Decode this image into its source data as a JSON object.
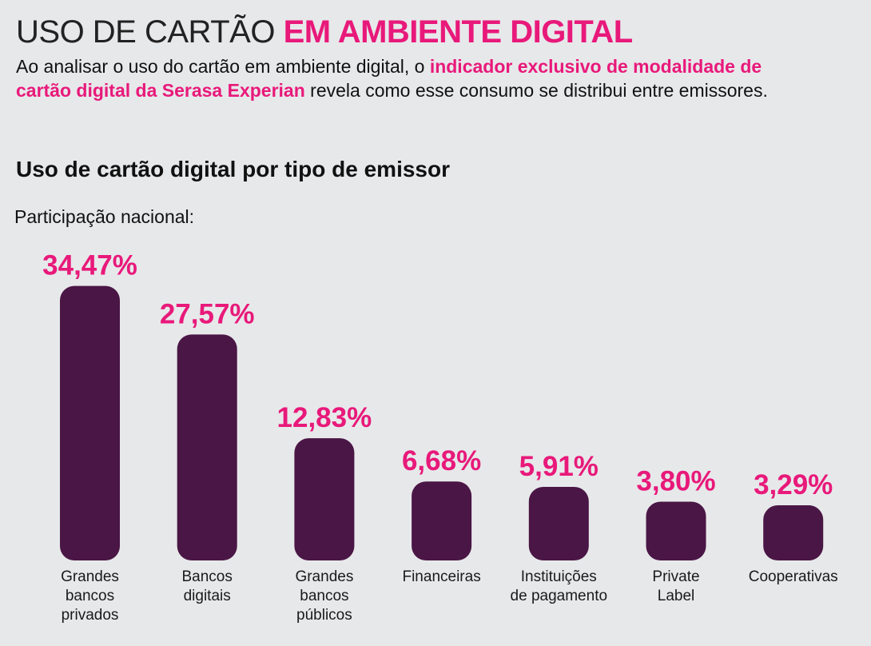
{
  "header": {
    "title_light": "USO DE CARTÃO",
    "title_bold": "EM AMBIENTE DIGITAL",
    "intro_1": "Ao analisar o uso do cartão em ambiente digital, o ",
    "intro_highlight": "indicador exclusivo de modalidade de cartão digital da Serasa Experian",
    "intro_2": " revela como esse consumo se distribui entre emissores."
  },
  "colors": {
    "accent": "#e8197a",
    "bar": "#4a1645",
    "background": "#e7e8ea"
  },
  "chart_data": {
    "type": "bar",
    "title": "Uso de cartão digital por tipo de emissor",
    "subtitle": "Participação nacional:",
    "categories": [
      [
        "Grandes",
        "bancos",
        "privados"
      ],
      [
        "Bancos",
        "digitais"
      ],
      [
        "Grandes",
        "bancos",
        "públicos"
      ],
      [
        "Financeiras"
      ],
      [
        "Instituições",
        "de pagamento"
      ],
      [
        "Private",
        "Label"
      ],
      [
        "Cooperativas"
      ]
    ],
    "values": [
      34.47,
      27.57,
      12.83,
      6.68,
      5.91,
      3.8,
      3.29
    ],
    "value_labels": [
      "34,47%",
      "27,57%",
      "12,83%",
      "6,68%",
      "5,91%",
      "3,80%",
      "3,29%"
    ],
    "unit": "%"
  }
}
